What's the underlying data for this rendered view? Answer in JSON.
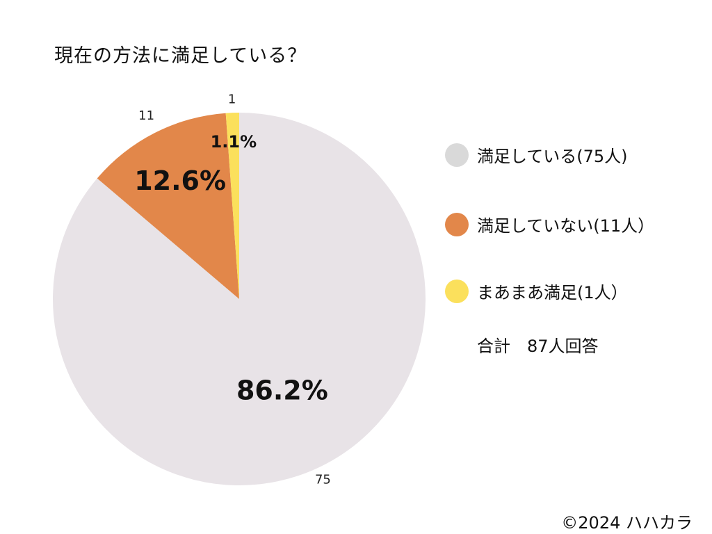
{
  "chart_data": {
    "type": "pie",
    "title": "現在の方法に満足している？",
    "slices": [
      {
        "name": "満足している(75人)",
        "value": 75,
        "percent_label": "86.2%",
        "color": "#e8e3e7",
        "legend_color": "#d9d9d9"
      },
      {
        "name": "満足していない(11人）",
        "value": 11,
        "percent_label": "12.6%",
        "color": "#e2874a",
        "legend_color": "#e2874a"
      },
      {
        "name": "まあまあ満足(1人）",
        "value": 1,
        "percent_label": "1.1%",
        "color": "#fbe05c",
        "legend_color": "#fbe05c"
      }
    ],
    "total_text": "合計　87人回答",
    "legend_position": "right"
  },
  "footer": {
    "copyright": "©2024 ハハカラ"
  }
}
